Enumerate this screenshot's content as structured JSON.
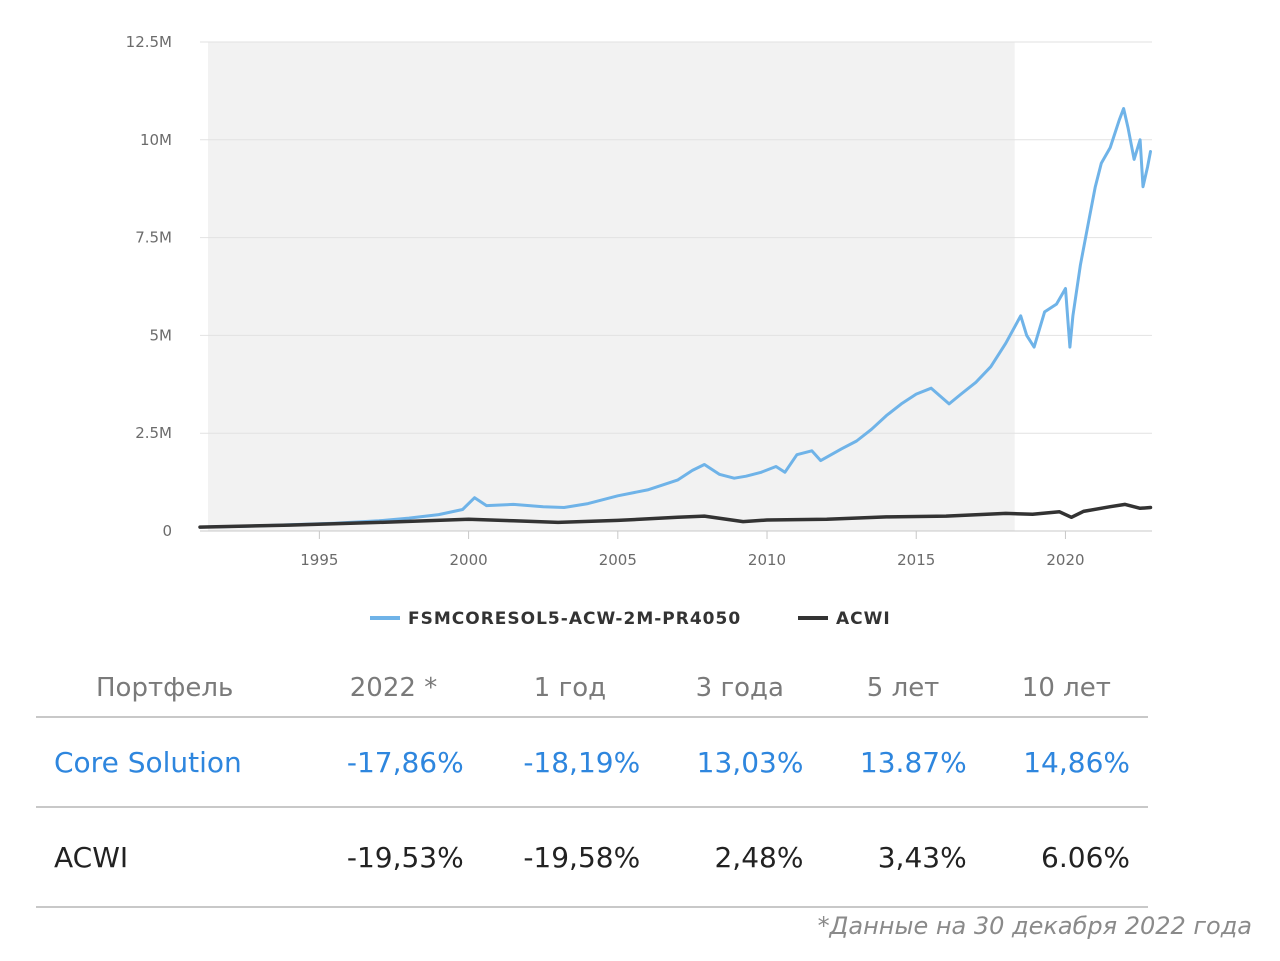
{
  "chart_data": {
    "type": "line",
    "title": "",
    "xlabel": "",
    "ylabel": "",
    "x_range": [
      1991.0,
      2022.9
    ],
    "ylim": [
      0,
      12500000
    ],
    "y_ticks": [
      0,
      2500000,
      5000000,
      7500000,
      10000000,
      12500000
    ],
    "y_tick_labels": [
      "0",
      "2.5M",
      "5M",
      "7.5M",
      "10M",
      "12.5M"
    ],
    "x_ticks": [
      1995,
      2000,
      2005,
      2010,
      2015,
      2020
    ],
    "x_tick_labels": [
      "1995",
      "2000",
      "2005",
      "2010",
      "2015",
      "2020"
    ],
    "shaded_region": [
      1991.0,
      2018.3
    ],
    "grid": "horizontal",
    "legend_position": "bottom-center",
    "series": [
      {
        "name": "FSMCORESOL5-ACW-2M-PR4050",
        "color": "#6fb3e8",
        "x": [
          1991.0,
          1992.5,
          1994.0,
          1995.5,
          1997.0,
          1998.0,
          1999.0,
          1999.8,
          2000.2,
          2000.6,
          2001.5,
          2002.5,
          2003.2,
          2004.0,
          2005.0,
          2006.0,
          2007.0,
          2007.5,
          2007.9,
          2008.4,
          2008.9,
          2009.3,
          2009.8,
          2010.3,
          2010.6,
          2011.0,
          2011.5,
          2011.8,
          2012.5,
          2013.0,
          2013.5,
          2014.0,
          2014.5,
          2015.0,
          2015.5,
          2016.1,
          2016.5,
          2017.0,
          2017.5,
          2018.0,
          2018.5,
          2018.7,
          2018.95,
          2019.3,
          2019.7,
          2020.0,
          2020.15,
          2020.25,
          2020.5,
          2020.8,
          2021.0,
          2021.2,
          2021.5,
          2021.8,
          2021.95,
          2022.1,
          2022.3,
          2022.5,
          2022.6,
          2022.75,
          2022.85
        ],
        "values": [
          100000,
          120000,
          160000,
          200000,
          260000,
          330000,
          420000,
          550000,
          850000,
          650000,
          680000,
          620000,
          600000,
          700000,
          900000,
          1050000,
          1300000,
          1550000,
          1700000,
          1450000,
          1350000,
          1400000,
          1500000,
          1650000,
          1500000,
          1950000,
          2050000,
          1800000,
          2100000,
          2300000,
          2600000,
          2950000,
          3250000,
          3500000,
          3650000,
          3250000,
          3500000,
          3800000,
          4200000,
          4800000,
          5500000,
          5000000,
          4700000,
          5600000,
          5800000,
          6200000,
          4700000,
          5500000,
          6800000,
          8000000,
          8800000,
          9400000,
          9800000,
          10500000,
          10800000,
          10300000,
          9500000,
          10000000,
          8800000,
          9300000,
          9700000
        ]
      },
      {
        "name": "ACWI",
        "color": "#333333",
        "x": [
          1991.0,
          1994.0,
          1997.0,
          2000.0,
          2001.5,
          2003.0,
          2005.0,
          2007.0,
          2007.9,
          2009.2,
          2010.0,
          2012.0,
          2014.0,
          2016.0,
          2018.0,
          2018.9,
          2019.8,
          2020.2,
          2020.6,
          2021.5,
          2022.0,
          2022.5,
          2022.85
        ],
        "values": [
          100000,
          150000,
          220000,
          300000,
          260000,
          220000,
          270000,
          350000,
          380000,
          240000,
          280000,
          300000,
          360000,
          380000,
          450000,
          430000,
          490000,
          350000,
          500000,
          620000,
          680000,
          580000,
          600000
        ]
      }
    ]
  },
  "table": {
    "headers": [
      "Портфель",
      "2022 *",
      "1 год",
      "3 года",
      "5 лет",
      "10 лет"
    ],
    "rows": [
      {
        "name": "Core Solution",
        "values": [
          "-17,86%",
          "-18,19%",
          "13,03%",
          "13.87%",
          "14,86%"
        ]
      },
      {
        "name": "ACWI",
        "values": [
          "-19,53%",
          "-19,58%",
          "2,48%",
          "3,43%",
          "6.06%"
        ]
      }
    ]
  },
  "footnote": "*Данные на 30 декабря 2022 года"
}
